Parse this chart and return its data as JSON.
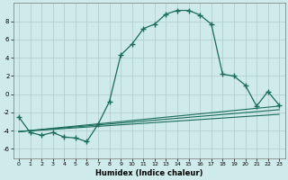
{
  "xlabel": "Humidex (Indice chaleur)",
  "bg_color": "#ceeaea",
  "grid_color": "#b0c8c8",
  "line_color": "#1a6b5a",
  "x_main": [
    0,
    1,
    2,
    3,
    4,
    5,
    6,
    7,
    8,
    9,
    10,
    11,
    12,
    13,
    14,
    15,
    16,
    17,
    18,
    19,
    20,
    21,
    22,
    23
  ],
  "y_main": [
    -2.5,
    -4.2,
    -4.5,
    -4.2,
    -4.7,
    -4.8,
    -5.2,
    -3.3,
    -0.8,
    4.3,
    5.5,
    7.2,
    7.7,
    8.8,
    9.2,
    9.2,
    8.7,
    7.7,
    2.2,
    2.0,
    1.0,
    -1.3,
    0.3,
    -1.2
  ],
  "line1_x": [
    0,
    23
  ],
  "line1_y": [
    -4.1,
    -1.3
  ],
  "line2_x": [
    0,
    23
  ],
  "line2_y": [
    -4.1,
    -1.7
  ],
  "line3_x": [
    0,
    23
  ],
  "line3_y": [
    -4.1,
    -2.2
  ],
  "ylim": [
    -7,
    10
  ],
  "xlim": [
    -0.5,
    23.5
  ],
  "yticks": [
    -6,
    -4,
    -2,
    0,
    2,
    4,
    6,
    8
  ],
  "xticks": [
    0,
    1,
    2,
    3,
    4,
    5,
    6,
    7,
    8,
    9,
    10,
    11,
    12,
    13,
    14,
    15,
    16,
    17,
    18,
    19,
    20,
    21,
    22,
    23
  ]
}
